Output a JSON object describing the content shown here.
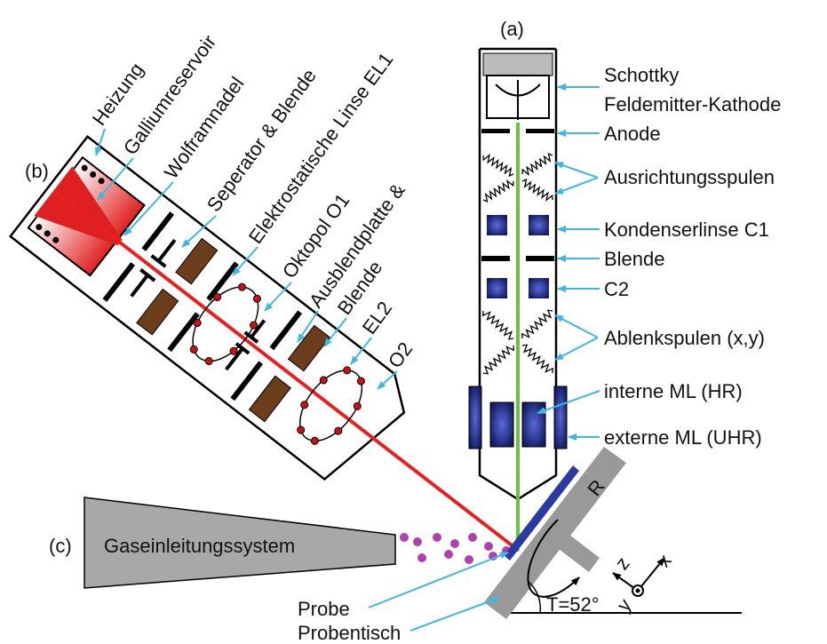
{
  "labels": {
    "sem": "(a)",
    "fib": "(b)",
    "gis": "(c)"
  },
  "sem_column": [
    "Schottky",
    "Feldemitter-Kathode",
    "Anode",
    "Ausrichtungsspulen",
    "Kondenserlinse C1",
    "Blende",
    "C2",
    "Ablenkspulen (x,y)",
    "interne ML (HR)",
    "externe ML (UHR)"
  ],
  "fib_column": [
    "Heizung",
    "Galliumreservoir",
    "Wolframnadel",
    "Seperator & Blende",
    "Elektrostatische Linse EL1",
    "Oktopol O1",
    "Ausblendplatte &",
    "Blende",
    "EL2",
    "O2"
  ],
  "gas_injection": "Gaseinleitungssystem",
  "stage": {
    "sample": "Probe",
    "table": "Probentisch",
    "rotation": "R",
    "tilt": "T=52°",
    "axis_x": "x",
    "axis_y": "y",
    "axis_z": "z"
  }
}
